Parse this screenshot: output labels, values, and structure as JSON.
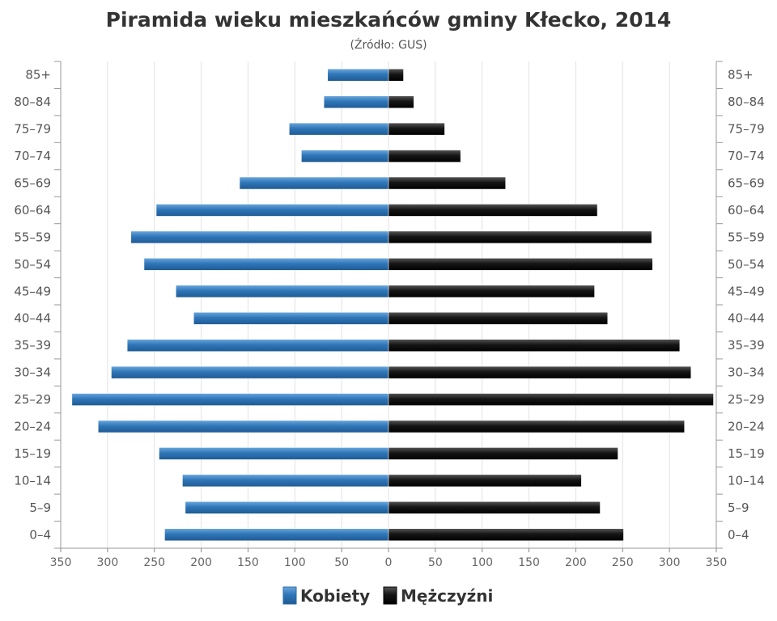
{
  "chart_data": {
    "type": "bar",
    "title": "Piramida wieku mieszkańców gminy Kłecko, 2014",
    "subtitle": "(Źródło: GUS)",
    "categories": [
      "85+",
      "80-84",
      "75-79",
      "70-74",
      "65-69",
      "60-64",
      "55-59",
      "50-54",
      "45-49",
      "40-44",
      "35-39",
      "30-34",
      "25-29",
      "20-24",
      "15-19",
      "10-14",
      "5-9",
      "0-4"
    ],
    "series": [
      {
        "name": "Kobiety",
        "color": "#3a7fc1",
        "values": [
          65,
          69,
          106,
          93,
          159,
          248,
          275,
          261,
          227,
          208,
          279,
          296,
          338,
          310,
          245,
          220,
          217,
          239
        ]
      },
      {
        "name": "Mężczyźni",
        "color": "#1c1c1c",
        "values": [
          16,
          27,
          60,
          77,
          125,
          223,
          281,
          282,
          220,
          234,
          311,
          323,
          347,
          316,
          245,
          206,
          226,
          251
        ]
      }
    ],
    "xlim": [
      -350,
      350
    ],
    "xticks": [
      "350",
      "300",
      "250",
      "200",
      "150",
      "100",
      "50",
      "0",
      "50",
      "100",
      "150",
      "200",
      "250",
      "300",
      "350"
    ],
    "grid": true,
    "legend": "bottom"
  }
}
